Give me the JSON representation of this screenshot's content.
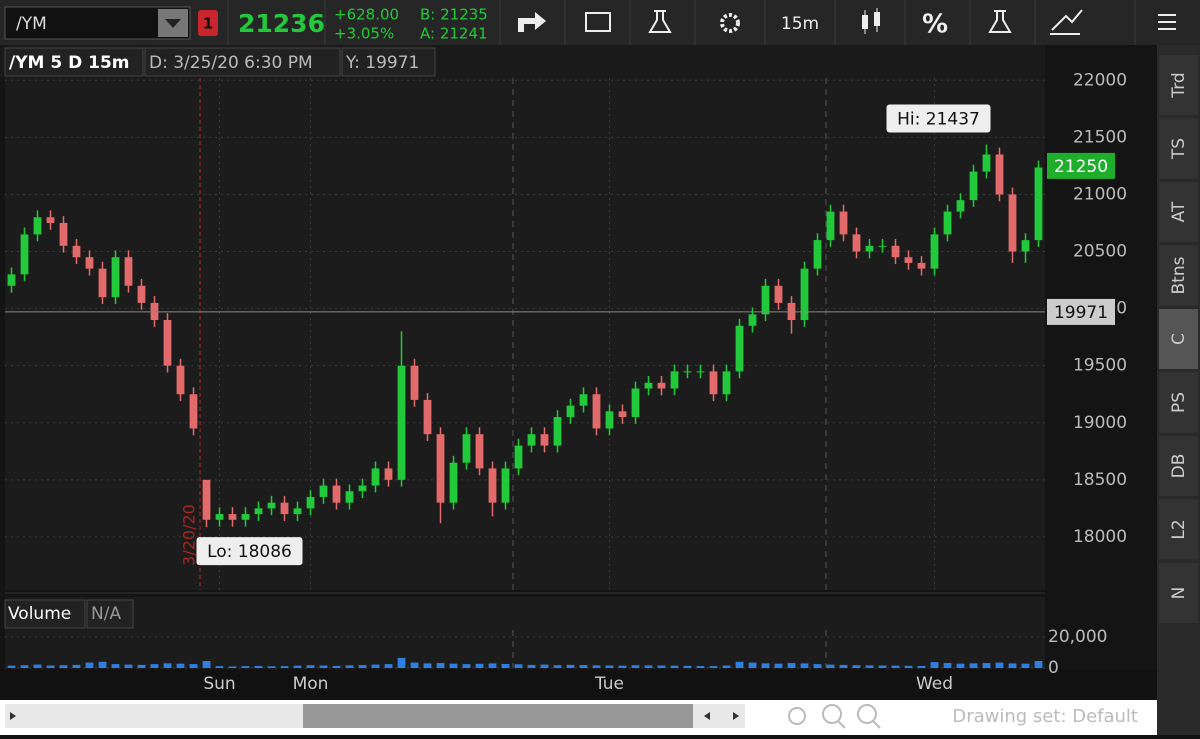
{
  "toolbar": {
    "symbol": "/YM",
    "alert_badge": "1",
    "last": "21236",
    "change": "+628.00",
    "change_pct": "+3.05%",
    "bid": "B: 21235",
    "ask": "A: 21241",
    "interval": "15m",
    "percent": "%"
  },
  "chart_data": {
    "type": "candlestick",
    "title": "/YM 5 D 15m",
    "date_label": "D: 3/25/20 6:30 PM",
    "crosshair_label": "Y: 19971",
    "crosshair": 19971,
    "last_tag": 21250,
    "hi_label": "Hi: 21437",
    "lo_label": "Lo: 18086",
    "date_marker": "3/20/20",
    "categories": [
      null,
      null,
      null,
      null,
      null,
      null,
      null,
      null,
      null,
      null,
      null,
      null,
      null,
      null,
      null,
      null,
      "Sun",
      null,
      null,
      null,
      null,
      null,
      null,
      "Mon",
      null,
      null,
      null,
      null,
      null,
      null,
      null,
      null,
      null,
      null,
      null,
      null,
      null,
      null,
      null,
      null,
      null,
      null,
      null,
      null,
      null,
      null,
      "Tue",
      null,
      null,
      null,
      null,
      null,
      null,
      null,
      null,
      null,
      null,
      null,
      null,
      null,
      null,
      null,
      null,
      null,
      null,
      null,
      null,
      null,
      null,
      null,
      null,
      "Wed",
      null,
      null,
      null,
      null,
      null,
      null,
      null,
      null
    ],
    "open": [
      20200,
      20300,
      20650,
      20800,
      20750,
      20550,
      20450,
      20350,
      20100,
      20450,
      20200,
      20050,
      19900,
      19500,
      19250,
      18500,
      18150,
      18200,
      18150,
      18200,
      18250,
      18300,
      18200,
      18250,
      18350,
      18450,
      18300,
      18400,
      18450,
      18600,
      18500,
      19500,
      19200,
      18900,
      18300,
      18650,
      18900,
      18600,
      18300,
      18600,
      18800,
      18900,
      18800,
      19050,
      19150,
      19250,
      18950,
      19100,
      19050,
      19300,
      19350,
      19300,
      19450,
      19450,
      19450,
      19250,
      19450,
      19850,
      19950,
      20200,
      20050,
      19900,
      20350,
      20600,
      20850,
      20650,
      20500,
      20550,
      20550,
      20450,
      20400,
      20350,
      20650,
      20850,
      20950,
      21200,
      21350,
      21000,
      20500,
      20600
    ],
    "high": [
      20360,
      20710,
      20860,
      20860,
      20810,
      20610,
      20510,
      20410,
      20510,
      20510,
      20260,
      20110,
      19960,
      19560,
      19310,
      18500,
      18260,
      18260,
      18260,
      18310,
      18360,
      18360,
      18310,
      18410,
      18510,
      18510,
      18460,
      18510,
      18660,
      18660,
      19800,
      19560,
      19260,
      18960,
      18710,
      18960,
      18960,
      18660,
      18660,
      18860,
      18960,
      18960,
      19110,
      19210,
      19310,
      19310,
      19160,
      19160,
      19360,
      19410,
      19410,
      19510,
      19510,
      19510,
      19510,
      19510,
      19910,
      20010,
      20260,
      20260,
      20110,
      20410,
      20660,
      20910,
      20910,
      20710,
      20610,
      20610,
      20610,
      20510,
      20460,
      20710,
      20910,
      21010,
      21260,
      21437,
      21410,
      21060,
      20660,
      21296
    ],
    "low": [
      20140,
      20240,
      20590,
      20690,
      20490,
      20390,
      20290,
      20040,
      20040,
      20140,
      19990,
      19840,
      19440,
      19190,
      18890,
      18086,
      18090,
      18090,
      18090,
      18140,
      18190,
      18140,
      18140,
      18190,
      18290,
      18240,
      18240,
      18340,
      18390,
      18440,
      18440,
      19140,
      18840,
      18120,
      18240,
      18590,
      18540,
      18180,
      18240,
      18540,
      18740,
      18740,
      18740,
      18990,
      19090,
      18890,
      18890,
      18990,
      18990,
      19240,
      19240,
      19240,
      19390,
      19390,
      19190,
      19190,
      19390,
      19790,
      19890,
      19990,
      19780,
      19840,
      20290,
      20540,
      20590,
      20440,
      20440,
      20490,
      20390,
      20340,
      20290,
      20290,
      20590,
      20790,
      20890,
      21140,
      20940,
      20400,
      20400,
      20540
    ],
    "close": [
      20300,
      20650,
      20800,
      20750,
      20550,
      20450,
      20350,
      20100,
      20450,
      20200,
      20050,
      19900,
      19500,
      19250,
      18950,
      18150,
      18200,
      18150,
      18200,
      18250,
      18300,
      18200,
      18250,
      18350,
      18450,
      18300,
      18400,
      18450,
      18600,
      18500,
      19500,
      19200,
      18900,
      18300,
      18650,
      18900,
      18600,
      18300,
      18600,
      18800,
      18900,
      18800,
      19050,
      19150,
      19250,
      18950,
      19100,
      19050,
      19300,
      19350,
      19300,
      19450,
      19450,
      19450,
      19250,
      19450,
      19850,
      19950,
      20200,
      20050,
      19900,
      20350,
      20600,
      20850,
      20650,
      20500,
      20550,
      20550,
      20450,
      20400,
      20350,
      20650,
      20850,
      20950,
      21200,
      21350,
      21000,
      20500,
      20600,
      21236
    ],
    "up_color": "#22c93a",
    "down_color": "#e26a6a",
    "ylim": [
      17535,
      22020
    ],
    "yticks": [
      18000,
      18500,
      19000,
      19500,
      20000,
      20500,
      21000,
      21500,
      22000
    ],
    "grid": true,
    "volume": {
      "title": "Volume",
      "status": "N/A",
      "color": "#2f7fe0",
      "ylim": [
        0,
        24500
      ],
      "yticks": [
        {
          "value": 20000,
          "label": "20,000"
        },
        0
      ],
      "values": [
        1500,
        1800,
        2200,
        1600,
        1800,
        2000,
        3500,
        4000,
        2500,
        2200,
        2000,
        2500,
        3000,
        2800,
        2500,
        4500,
        1200,
        1000,
        1200,
        1300,
        1100,
        1200,
        1500,
        1800,
        1600,
        1400,
        1700,
        1900,
        2200,
        2500,
        6500,
        3500,
        3000,
        3200,
        2800,
        2500,
        2700,
        3000,
        2600,
        2400,
        2000,
        2200,
        1800,
        2000,
        1900,
        1700,
        1600,
        1500,
        1800,
        1700,
        1600,
        1500,
        1400,
        1300,
        1200,
        1600,
        4000,
        3500,
        3000,
        2800,
        3200,
        3000,
        2500,
        2200,
        2000,
        1800,
        1700,
        1600,
        1500,
        1400,
        1300,
        3800,
        3200,
        2800,
        3000,
        3200,
        3500,
        3000,
        2800,
        4500
      ]
    }
  },
  "side_tabs": [
    "Trd",
    "TS",
    "AT",
    "Btns",
    "C",
    "PS",
    "DB",
    "L2",
    "N"
  ],
  "status": {
    "drawing_set": "Drawing set: Default"
  }
}
